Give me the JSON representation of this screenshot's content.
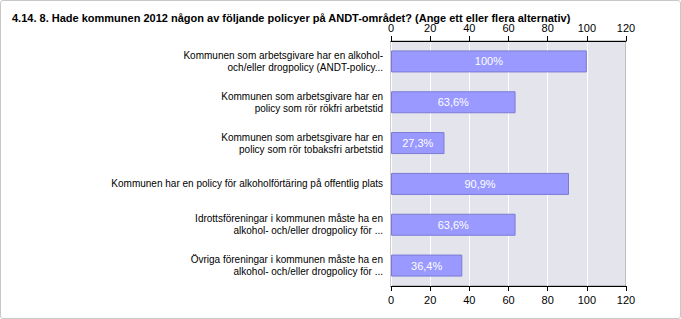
{
  "chart_data": {
    "type": "bar",
    "orientation": "horizontal",
    "title": "4.14. 8. Hade kommunen 2012 någon av följande policyer på ANDT-området? (Ange ett eller flera alternativ)",
    "categories": [
      "Kommunen som arbetsgivare har en alkohol-\noch/eller drogpolicy (ANDT-policy...",
      "Kommunen som arbetsgivare har en\npolicy som rör rökfri arbetstid",
      "Kommunen som arbetsgivare har en\npolicy som rör tobaksfri arbetstid",
      "Kommunen har en policy för alkoholförtäring på offentlig plats",
      "Idrottsföreningar i kommunen måste ha en\nalkohol- och/eller drogpolicy för ...",
      "Övriga föreningar i kommunen måste ha en\nalkohol- och/eller drogpolicy för ..."
    ],
    "values": [
      100,
      63.6,
      27.3,
      90.9,
      63.6,
      36.4
    ],
    "value_labels": [
      "100%",
      "63,6%",
      "27,3%",
      "90,9%",
      "63,6%",
      "36,4%"
    ],
    "data_labels": true,
    "color": "#9999ff",
    "xlim": [
      0,
      120
    ],
    "xticks": [
      0,
      20,
      40,
      60,
      80,
      100,
      120
    ],
    "grid": true
  }
}
